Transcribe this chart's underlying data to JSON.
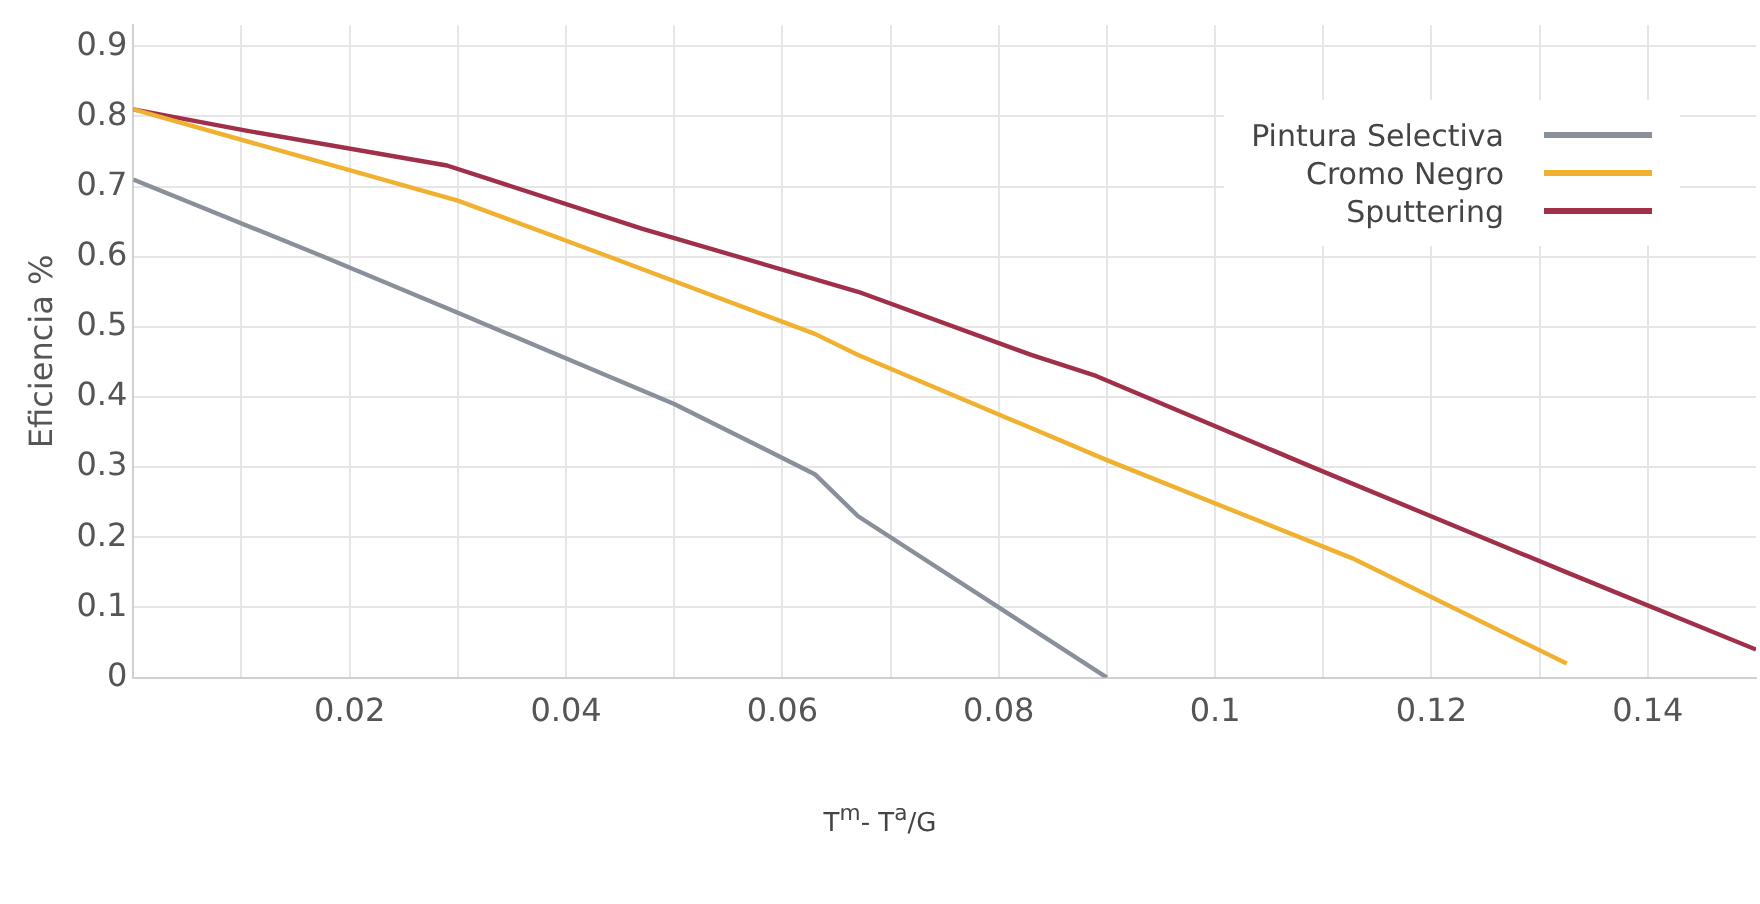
{
  "chart_data": {
    "type": "line",
    "xlabel": "T$^{m}$- T$^{a}$/G",
    "ylabel": "Eficiencia %",
    "xlim": [
      0,
      0.15
    ],
    "ylim": [
      0,
      0.93
    ],
    "xticks": [
      {
        "value": 0.01,
        "label": null
      },
      0.02,
      {
        "value": 0.03,
        "label": null
      },
      0.04,
      {
        "value": 0.05,
        "label": null
      },
      0.06,
      {
        "value": 0.07,
        "label": null
      },
      0.08,
      {
        "value": 0.09,
        "label": null
      },
      0.1,
      {
        "value": 0.11,
        "label": null
      },
      0.12,
      {
        "value": 0.13,
        "label": null
      },
      0.14
    ],
    "yticks": [
      0,
      0.1,
      0.2,
      0.3,
      0.4,
      0.5,
      0.6,
      0.7,
      0.8,
      0.9
    ],
    "grid": true,
    "legend": "top right",
    "marker": "none",
    "line_style": "solid",
    "series": [
      {
        "name": "Pintura Selectiva",
        "color": "#8a9099",
        "x": [
          0,
          0.0176,
          0.03,
          0.05,
          0.063,
          0.067,
          0.08,
          0.09
        ],
        "values": [
          0.71,
          0.6,
          0.52,
          0.39,
          0.29,
          0.23,
          0.1,
          0
        ]
      },
      {
        "name": "Cromo Negro",
        "color": "#f0b030",
        "x": [
          0,
          0.03,
          0.044,
          0.063,
          0.067,
          0.09,
          0.1127,
          0.1325
        ],
        "values": [
          0.81,
          0.68,
          0.6,
          0.49,
          0.46,
          0.31,
          0.17,
          0.02
        ]
      },
      {
        "name": "Sputtering",
        "color": "#a0304a",
        "x": [
          0,
          0.0103,
          0.029,
          0.047,
          0.067,
          0.083,
          0.089,
          0.109,
          0.1325,
          0.15
        ],
        "values": [
          0.81,
          0.78,
          0.73,
          0.64,
          0.55,
          0.46,
          0.43,
          0.3,
          0.15,
          0.04
        ]
      }
    ]
  }
}
